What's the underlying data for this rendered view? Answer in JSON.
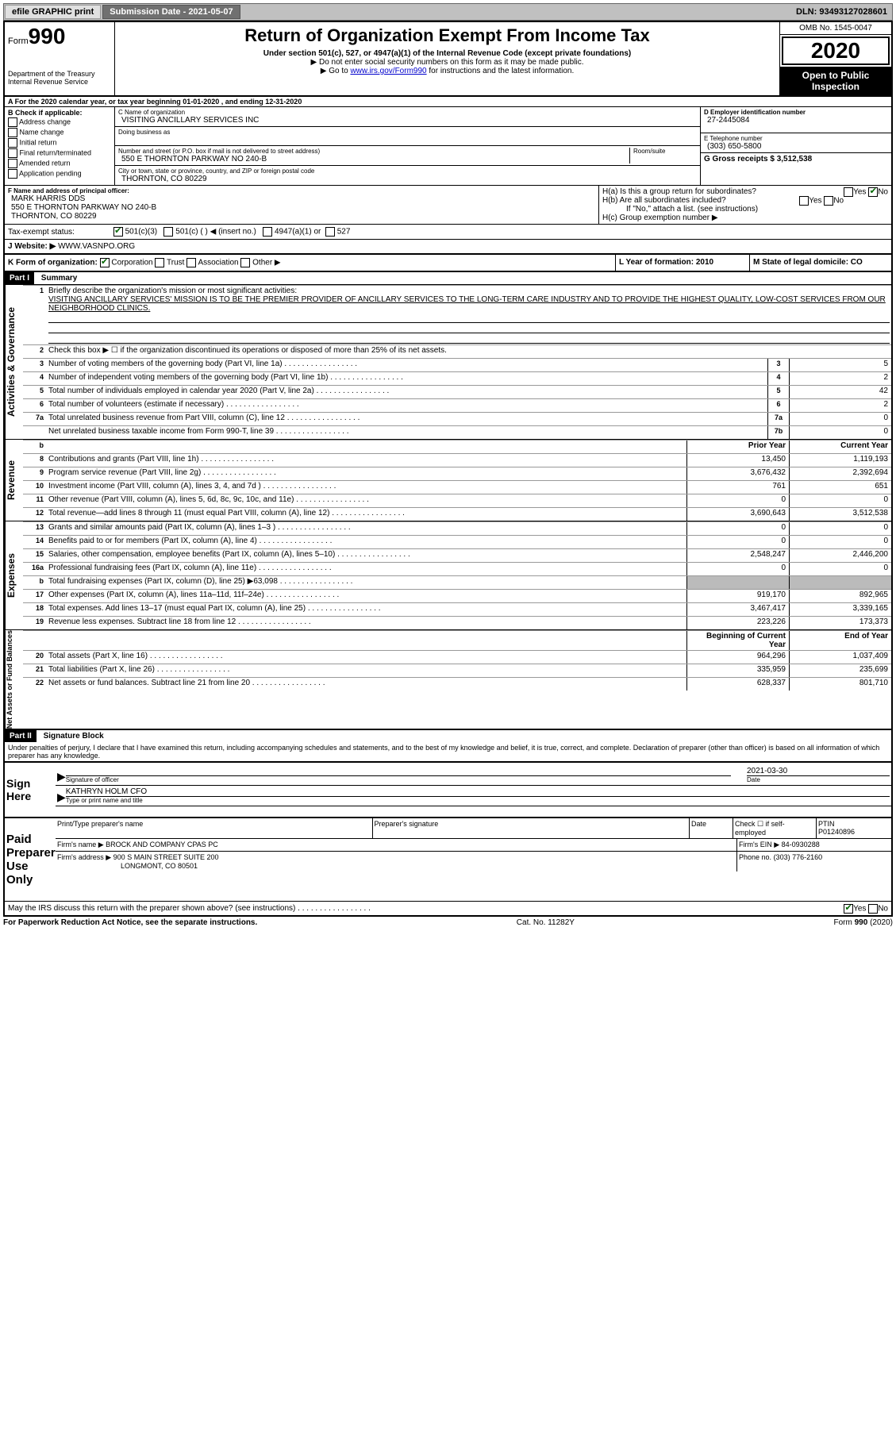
{
  "topbar": {
    "efile": "efile GRAPHIC print",
    "sub_label": "Submission Date - 2021-05-07",
    "dln": "DLN: 93493127028601"
  },
  "header": {
    "form_word": "Form",
    "form_num": "990",
    "dept": "Department of the Treasury\nInternal Revenue Service",
    "title": "Return of Organization Exempt From Income Tax",
    "subtitle": "Under section 501(c), 527, or 4947(a)(1) of the Internal Revenue Code (except private foundations)",
    "note1": "▶ Do not enter social security numbers on this form as it may be made public.",
    "note2_pre": "▶ Go to ",
    "note2_link": "www.irs.gov/Form990",
    "note2_post": " for instructions and the latest information.",
    "omb": "OMB No. 1545-0047",
    "year": "2020",
    "inspect": "Open to Public Inspection"
  },
  "period": "A For the 2020 calendar year, or tax year beginning 01-01-2020    , and ending 12-31-2020",
  "sectionB": {
    "label": "B Check if applicable:",
    "options": [
      "Address change",
      "Name change",
      "Initial return",
      "Final return/terminated",
      "Amended return",
      "Application pending"
    ]
  },
  "org": {
    "c_label": "C Name of organization",
    "name": "VISITING ANCILLARY SERVICES INC",
    "dba_label": "Doing business as",
    "addr_label": "Number and street (or P.O. box if mail is not delivered to street address)",
    "room_label": "Room/suite",
    "addr": "550 E THORNTON PARKWAY NO 240-B",
    "city_label": "City or town, state or province, country, and ZIP or foreign postal code",
    "city": "THORNTON, CO  80229"
  },
  "right_top": {
    "d_label": "D Employer identification number",
    "ein": "27-2445084",
    "e_label": "E Telephone number",
    "phone": "(303) 650-5800",
    "g_label": "G Gross receipts $ 3,512,538"
  },
  "officer": {
    "f_label": "F  Name and address of principal officer:",
    "name": "MARK HARRIS DDS",
    "addr1": "550 E THORNTON PARKWAY NO 240-B",
    "addr2": "THORNTON, CO  80229"
  },
  "h": {
    "a": "H(a)  Is this a group return for subordinates?",
    "b": "H(b)  Are all subordinates included?",
    "note": "If \"No,\" attach a list. (see instructions)",
    "c": "H(c)  Group exemption number ▶"
  },
  "tax_status": "Tax-exempt status:",
  "tax_opts": [
    "501(c)(3)",
    "501(c) (  ) ◀ (insert no.)",
    "4947(a)(1) or",
    "527"
  ],
  "website_label": "J   Website: ▶",
  "website": "WWW.VASNPO.ORG",
  "k_label": "K Form of organization:",
  "k_opts": [
    "Corporation",
    "Trust",
    "Association",
    "Other ▶"
  ],
  "l_label": "L Year of formation: 2010",
  "m_label": "M State of legal domicile: CO",
  "part1": {
    "head": "Part I",
    "title": "Summary",
    "q1": "Briefly describe the organization's mission or most significant activities:",
    "mission": "VISITING ANCILLARY SERVICES' MISSION IS TO BE THE PREMIER PROVIDER OF ANCILLARY SERVICES TO THE LONG-TERM CARE INDUSTRY AND TO PROVIDE THE HIGHEST QUALITY, LOW-COST SERVICES FROM OUR NEIGHBORHOOD CLINICS.",
    "q2": "Check this box ▶ ☐ if the organization discontinued its operations or disposed of more than 25% of its net assets.",
    "sections": {
      "gov": "Activities & Governance",
      "rev": "Revenue",
      "exp": "Expenses",
      "net": "Net Assets or Fund Balances"
    },
    "col_prior": "Prior Year",
    "col_current": "Current Year",
    "col_boy": "Beginning of Current Year",
    "col_eoy": "End of Year",
    "gov_lines": [
      {
        "n": "3",
        "d": "Number of voting members of the governing body (Part VI, line 1a)",
        "c": "3",
        "v": "5"
      },
      {
        "n": "4",
        "d": "Number of independent voting members of the governing body (Part VI, line 1b)",
        "c": "4",
        "v": "2"
      },
      {
        "n": "5",
        "d": "Total number of individuals employed in calendar year 2020 (Part V, line 2a)",
        "c": "5",
        "v": "42"
      },
      {
        "n": "6",
        "d": "Total number of volunteers (estimate if necessary)",
        "c": "6",
        "v": "2"
      },
      {
        "n": "7a",
        "d": "Total unrelated business revenue from Part VIII, column (C), line 12",
        "c": "7a",
        "v": "0"
      },
      {
        "n": "",
        "d": "Net unrelated business taxable income from Form 990-T, line 39",
        "c": "7b",
        "v": "0"
      }
    ],
    "rev_lines": [
      {
        "n": "8",
        "d": "Contributions and grants (Part VIII, line 1h)",
        "p": "13,450",
        "c": "1,119,193"
      },
      {
        "n": "9",
        "d": "Program service revenue (Part VIII, line 2g)",
        "p": "3,676,432",
        "c": "2,392,694"
      },
      {
        "n": "10",
        "d": "Investment income (Part VIII, column (A), lines 3, 4, and 7d )",
        "p": "761",
        "c": "651"
      },
      {
        "n": "11",
        "d": "Other revenue (Part VIII, column (A), lines 5, 6d, 8c, 9c, 10c, and 11e)",
        "p": "0",
        "c": "0"
      },
      {
        "n": "12",
        "d": "Total revenue—add lines 8 through 11 (must equal Part VIII, column (A), line 12)",
        "p": "3,690,643",
        "c": "3,512,538"
      }
    ],
    "exp_lines": [
      {
        "n": "13",
        "d": "Grants and similar amounts paid (Part IX, column (A), lines 1–3 )",
        "p": "0",
        "c": "0"
      },
      {
        "n": "14",
        "d": "Benefits paid to or for members (Part IX, column (A), line 4)",
        "p": "0",
        "c": "0"
      },
      {
        "n": "15",
        "d": "Salaries, other compensation, employee benefits (Part IX, column (A), lines 5–10)",
        "p": "2,548,247",
        "c": "2,446,200"
      },
      {
        "n": "16a",
        "d": "Professional fundraising fees (Part IX, column (A), line 11e)",
        "p": "0",
        "c": "0"
      },
      {
        "n": "b",
        "d": "Total fundraising expenses (Part IX, column (D), line 25) ▶63,098",
        "p": "SHADE",
        "c": "SHADE"
      },
      {
        "n": "17",
        "d": "Other expenses (Part IX, column (A), lines 11a–11d, 11f–24e)",
        "p": "919,170",
        "c": "892,965"
      },
      {
        "n": "18",
        "d": "Total expenses. Add lines 13–17 (must equal Part IX, column (A), line 25)",
        "p": "3,467,417",
        "c": "3,339,165"
      },
      {
        "n": "19",
        "d": "Revenue less expenses. Subtract line 18 from line 12",
        "p": "223,226",
        "c": "173,373"
      }
    ],
    "net_lines": [
      {
        "n": "20",
        "d": "Total assets (Part X, line 16)",
        "p": "964,296",
        "c": "1,037,409"
      },
      {
        "n": "21",
        "d": "Total liabilities (Part X, line 26)",
        "p": "335,959",
        "c": "235,699"
      },
      {
        "n": "22",
        "d": "Net assets or fund balances. Subtract line 21 from line 20",
        "p": "628,337",
        "c": "801,710"
      }
    ]
  },
  "part2": {
    "head": "Part II",
    "title": "Signature Block",
    "decl": "Under penalties of perjury, I declare that I have examined this return, including accompanying schedules and statements, and to the best of my knowledge and belief, it is true, correct, and complete. Declaration of preparer (other than officer) is based on all information of which preparer has any knowledge.",
    "sign_here": "Sign Here",
    "sig_officer": "Signature of officer",
    "date": "Date",
    "date_val": "2021-03-30",
    "typed": "KATHRYN HOLM  CFO",
    "typed_label": "Type or print name and title",
    "paid": "Paid Preparer Use Only",
    "p_name_label": "Print/Type preparer's name",
    "p_sig_label": "Preparer's signature",
    "p_date_label": "Date",
    "p_check": "Check ☐ if self-employed",
    "ptin_label": "PTIN",
    "ptin": "P01240896",
    "firm_name_label": "Firm's name    ▶",
    "firm_name": "BROCK AND COMPANY CPAS PC",
    "firm_ein_label": "Firm's EIN ▶",
    "firm_ein": "84-0930288",
    "firm_addr_label": "Firm's address ▶",
    "firm_addr": "900 S MAIN STREET SUITE 200",
    "firm_city": "LONGMONT, CO  80501",
    "phone_label": "Phone no.",
    "phone": "(303) 776-2160",
    "discuss": "May the IRS discuss this return with the preparer shown above? (see instructions)"
  },
  "footer": {
    "left": "For Paperwork Reduction Act Notice, see the separate instructions.",
    "mid": "Cat. No. 11282Y",
    "right": "Form 990 (2020)"
  }
}
